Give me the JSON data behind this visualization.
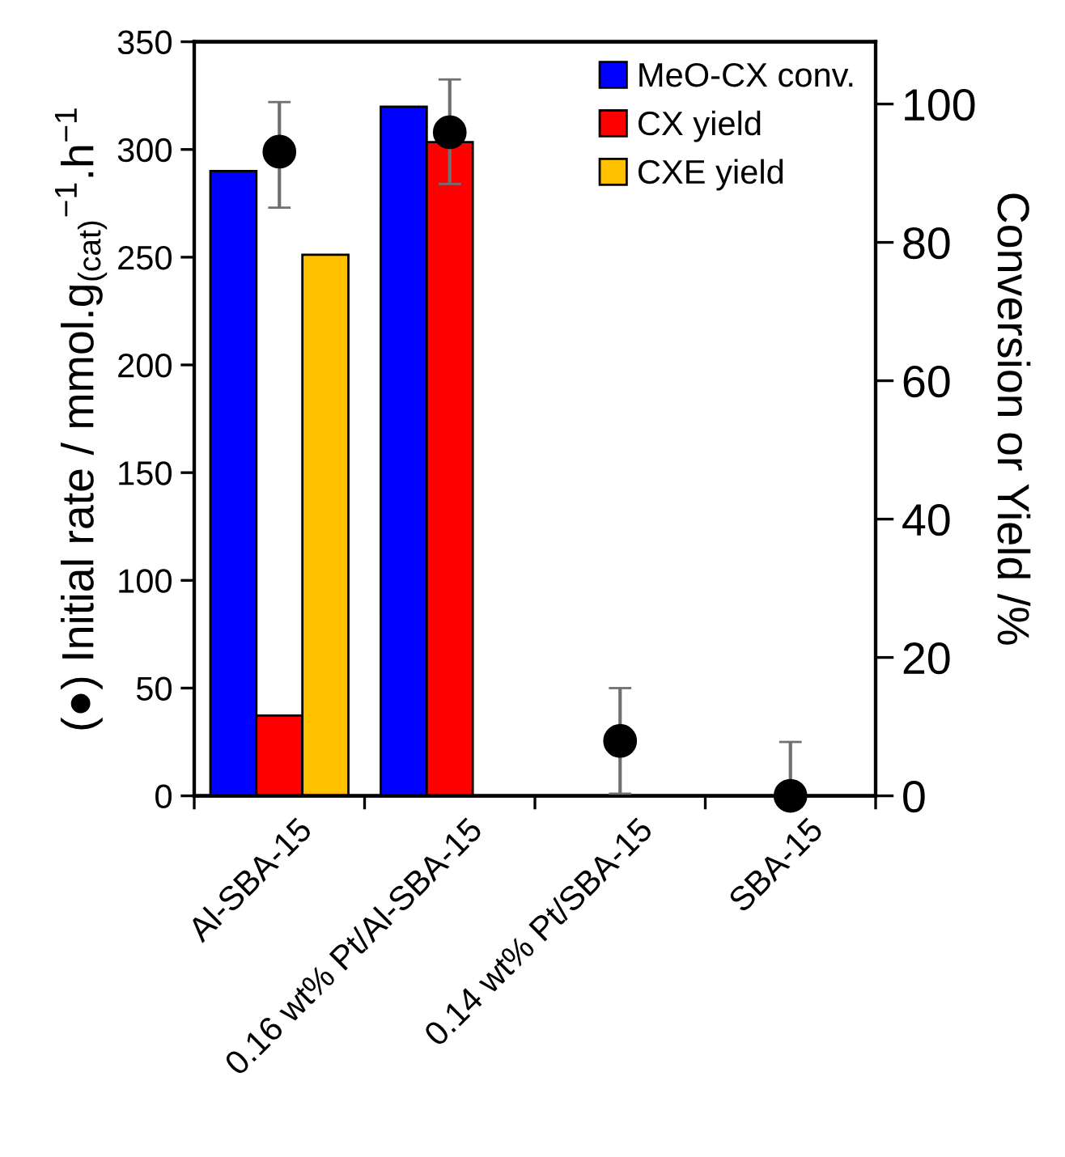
{
  "chart_data": {
    "type": "bar",
    "categories": [
      "Al-SBA-15",
      "0.16 wt% Pt/Al-SBA-15",
      "0.14 wt% Pt/SBA-15",
      "SBA-15"
    ],
    "ylabel": "(●) Initial rate / mmol.g$_{(cat)}$$^{−1}$.h$^{−1}$",
    "y2label": "Conversion or Yield /%",
    "ylim": [
      0,
      350
    ],
    "yticks": [
      0,
      50,
      100,
      150,
      200,
      250,
      300,
      350
    ],
    "y2lim": [
      0,
      109
    ],
    "y2ticks": [
      0,
      20,
      40,
      60,
      80,
      100
    ],
    "legend": "top right",
    "grid": false,
    "series": [
      {
        "name": "MeO-CX conv.",
        "color": "#0000ff",
        "axis": "y2",
        "values": [
          90.3,
          99.6,
          null,
          null
        ]
      },
      {
        "name": "CX yield",
        "color": "#ff0000",
        "axis": "y2",
        "values": [
          11.6,
          94.5,
          null,
          null
        ]
      },
      {
        "name": "CXE yield",
        "color": "#ffc000",
        "axis": "y2",
        "values": [
          78.2,
          null,
          null,
          null
        ]
      },
      {
        "type": "scatter",
        "color": "#000000",
        "marker": "circle",
        "x": [
          "Al-SBA-15",
          "0.16 wt% Pt/Al-SBA-15",
          "0.14 wt% Pt/SBA-15",
          "SBA-15"
        ],
        "values": [
          299,
          308,
          25.5,
          0
        ],
        "errors": [
          [
            273,
            322
          ],
          [
            284,
            332.5
          ],
          [
            1,
            50
          ],
          [
            0,
            25
          ]
        ]
      }
    ]
  }
}
